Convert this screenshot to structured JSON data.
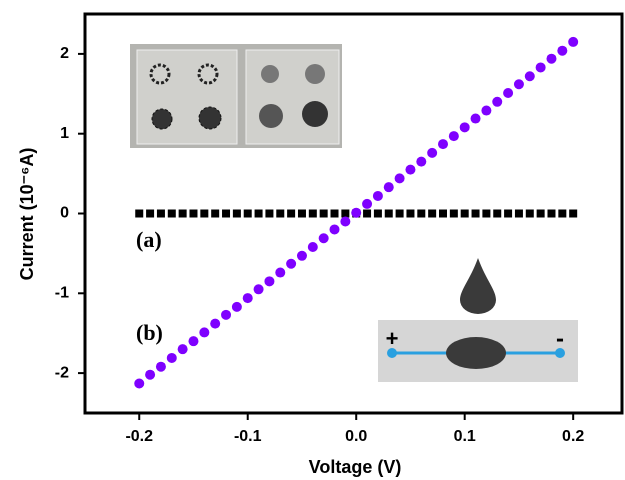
{
  "chart_data": {
    "type": "scatter",
    "x_label": "Voltage (V)",
    "y_label": "Current (10⁻⁶A)",
    "annotations": [
      "(a)",
      "(b)",
      "+",
      "-"
    ],
    "x": [
      -0.2,
      -0.19,
      -0.18,
      -0.17,
      -0.16,
      -0.15,
      -0.14,
      -0.13,
      -0.12,
      -0.11,
      -0.1,
      -0.09,
      -0.08,
      -0.07,
      -0.06,
      -0.05,
      -0.04,
      -0.03,
      -0.02,
      -0.01,
      0,
      0.01,
      0.02,
      0.03,
      0.04,
      0.05,
      0.06,
      0.07,
      0.08,
      0.09,
      0.1,
      0.11,
      0.12,
      0.13,
      0.14,
      0.15,
      0.16,
      0.17,
      0.18,
      0.19,
      0.2
    ],
    "series": [
      {
        "color": "#000000",
        "marker": "square",
        "values": [
          0,
          0,
          0,
          0,
          0,
          0,
          0,
          0,
          0,
          0,
          0,
          0,
          0,
          0,
          0,
          0,
          0,
          0,
          0,
          0,
          0,
          0,
          0,
          0,
          0,
          0,
          0,
          0,
          0,
          0,
          0,
          0,
          0,
          0,
          0,
          0,
          0,
          0,
          0,
          0,
          0
        ]
      },
      {
        "color": "#7f00ff",
        "marker": "circle",
        "values": [
          -2.13,
          -2.02,
          -1.92,
          -1.81,
          -1.7,
          -1.6,
          -1.49,
          -1.38,
          -1.27,
          -1.17,
          -1.06,
          -0.95,
          -0.85,
          -0.74,
          -0.63,
          -0.53,
          -0.42,
          -0.31,
          -0.2,
          -0.1,
          0.01,
          0.12,
          0.22,
          0.33,
          0.44,
          0.55,
          0.65,
          0.76,
          0.87,
          0.97,
          1.08,
          1.19,
          1.29,
          1.4,
          1.51,
          1.62,
          1.72,
          1.83,
          1.94,
          2.04,
          2.15
        ]
      }
    ],
    "xlim": [
      -0.25,
      0.245
    ],
    "ylim": [
      -2.5,
      2.5
    ],
    "xticks": [
      -0.2,
      -0.1,
      {
        "value": 0,
        "label": "0.0"
      },
      0.1,
      0.2
    ],
    "yticks": [
      -2,
      -1,
      0,
      1,
      2
    ]
  }
}
